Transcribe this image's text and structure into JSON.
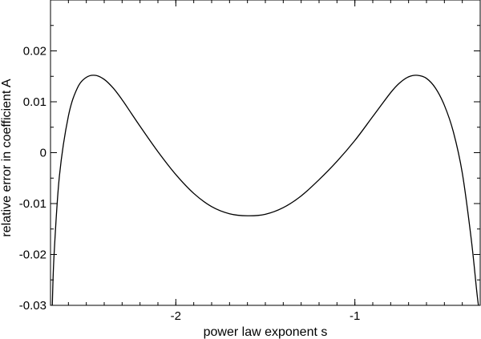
{
  "chart_data": {
    "type": "line",
    "title": "",
    "xlabel": "power law exponent s",
    "ylabel": "relative error in coefficient A",
    "xlim": [
      -2.7,
      -0.3
    ],
    "ylim": [
      -0.03,
      0.03
    ],
    "xticks": [
      -2,
      -1
    ],
    "xtick_labels": [
      "-2",
      "-1"
    ],
    "yticks": [
      -0.03,
      -0.02,
      -0.01,
      0,
      0.01,
      0.02
    ],
    "ytick_labels": [
      "-0.03",
      "-0.02",
      "-0.01",
      "0",
      "0.01",
      "0.02"
    ],
    "grid": false,
    "legend": "none",
    "line_color": "#000000",
    "series": [
      {
        "x": [
          -2.69,
          -2.68,
          -2.65,
          -2.6,
          -2.55,
          -2.5,
          -2.45,
          -2.4,
          -2.35,
          -2.3,
          -2.25,
          -2.2,
          -2.1,
          -2.0,
          -1.9,
          -1.8,
          -1.7,
          -1.6,
          -1.5,
          -1.4,
          -1.3,
          -1.2,
          -1.1,
          -1.0,
          -0.9,
          -0.8,
          -0.75,
          -0.7,
          -0.65,
          -0.6,
          -0.55,
          -0.5,
          -0.45,
          -0.4,
          -0.35,
          -0.32,
          -0.31
        ],
        "y": [
          -0.03,
          -0.02,
          -0.0045,
          0.0072,
          0.0127,
          0.0148,
          0.0152,
          0.0144,
          0.0127,
          0.0104,
          0.0078,
          0.0052,
          0.0002,
          -0.0043,
          -0.008,
          -0.0106,
          -0.012,
          -0.0124,
          -0.0121,
          -0.0108,
          -0.0085,
          -0.0053,
          -0.0017,
          0.0024,
          0.0071,
          0.0118,
          0.0137,
          0.0149,
          0.0152,
          0.0146,
          0.0127,
          0.0093,
          0.0041,
          -0.004,
          -0.017,
          -0.027,
          -0.03
        ]
      }
    ]
  }
}
